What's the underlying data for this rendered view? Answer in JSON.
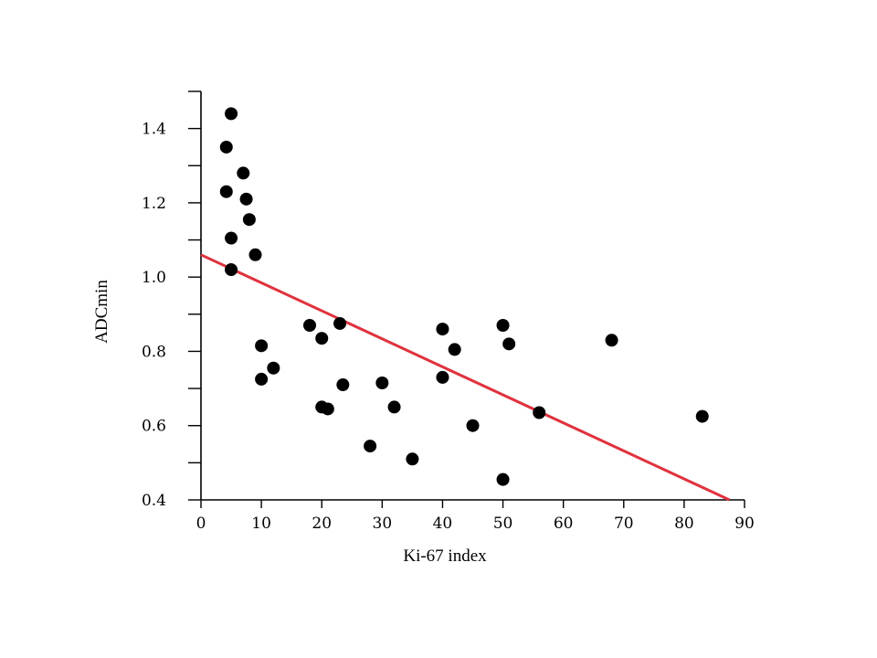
{
  "chart_data": {
    "type": "scatter",
    "xlabel": "Ki-67 index",
    "ylabel": "ADCmin",
    "xlim": [
      0,
      90
    ],
    "ylim": [
      0.4,
      1.5
    ],
    "x_ticks": [
      0,
      10,
      20,
      30,
      40,
      50,
      60,
      70,
      80,
      90
    ],
    "x_tick_labels": [
      "0",
      "10",
      "20",
      "30",
      "40",
      "50",
      "60",
      "70",
      "80",
      "90"
    ],
    "y_major_ticks": [
      0.4,
      0.6,
      0.8,
      1.0,
      1.2,
      1.4
    ],
    "y_tick_labels": [
      "0.4",
      "0.6",
      "0.8",
      "1.0",
      "1.2",
      "1.4"
    ],
    "y_minor_ticks": [
      0.5,
      0.7,
      0.9,
      1.1,
      1.3,
      1.5
    ],
    "grid": false,
    "points": [
      {
        "x": 5,
        "y": 1.44
      },
      {
        "x": 4.2,
        "y": 1.35
      },
      {
        "x": 7,
        "y": 1.28
      },
      {
        "x": 4.2,
        "y": 1.23
      },
      {
        "x": 7.5,
        "y": 1.21
      },
      {
        "x": 8,
        "y": 1.155
      },
      {
        "x": 5,
        "y": 1.105
      },
      {
        "x": 9,
        "y": 1.06
      },
      {
        "x": 5,
        "y": 1.02
      },
      {
        "x": 10,
        "y": 0.815
      },
      {
        "x": 10,
        "y": 0.725
      },
      {
        "x": 12,
        "y": 0.755
      },
      {
        "x": 18,
        "y": 0.87
      },
      {
        "x": 20,
        "y": 0.835
      },
      {
        "x": 23,
        "y": 0.875
      },
      {
        "x": 20,
        "y": 0.65
      },
      {
        "x": 21,
        "y": 0.645
      },
      {
        "x": 23.5,
        "y": 0.71
      },
      {
        "x": 28,
        "y": 0.545
      },
      {
        "x": 30,
        "y": 0.715
      },
      {
        "x": 32,
        "y": 0.65
      },
      {
        "x": 35,
        "y": 0.51
      },
      {
        "x": 40,
        "y": 0.86
      },
      {
        "x": 40,
        "y": 0.73
      },
      {
        "x": 42,
        "y": 0.805
      },
      {
        "x": 45,
        "y": 0.6
      },
      {
        "x": 50,
        "y": 0.87
      },
      {
        "x": 51,
        "y": 0.82
      },
      {
        "x": 50,
        "y": 0.455
      },
      {
        "x": 56,
        "y": 0.635
      },
      {
        "x": 68,
        "y": 0.83
      },
      {
        "x": 83,
        "y": 0.625
      }
    ],
    "regression_line": {
      "x": [
        0,
        87.5
      ],
      "y": [
        1.06,
        0.4
      ],
      "color": "#e0323e"
    },
    "point_color": "#000000"
  }
}
